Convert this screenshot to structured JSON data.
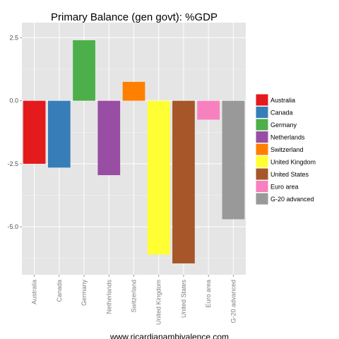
{
  "chart_data": {
    "type": "bar",
    "title": "Primary Balance (gen govt): %GDP",
    "xlabel": "",
    "ylabel": "",
    "categories": [
      "Australia",
      "Canada",
      "Germany",
      "Netherlands",
      "Switzerland",
      "United Kingdom",
      "United States",
      "Euro area",
      "G-20 advanced"
    ],
    "values": [
      -2.5,
      -2.65,
      2.4,
      -2.95,
      0.75,
      -6.1,
      -6.45,
      -0.75,
      -4.7
    ],
    "colors": [
      "#E41A1C",
      "#377EB8",
      "#4DAF4A",
      "#984EA3",
      "#FF7F00",
      "#FFFF33",
      "#A65628",
      "#F781BF",
      "#999999"
    ],
    "ylim": [
      -6.9,
      3.1
    ],
    "yticks": [
      2.5,
      0.0,
      -2.5,
      -5.0
    ],
    "ytick_labels": [
      "2.5",
      "0.0",
      "-2.5",
      "-5.0"
    ],
    "grid": true,
    "legend": {
      "position": "right",
      "entries": [
        "Australia",
        "Canada",
        "Germany",
        "Netherlands",
        "Switzerland",
        "United Kingdom",
        "United States",
        "Euro area",
        "G-20 advanced"
      ]
    },
    "caption": "www.ricardianambivalence.com"
  }
}
